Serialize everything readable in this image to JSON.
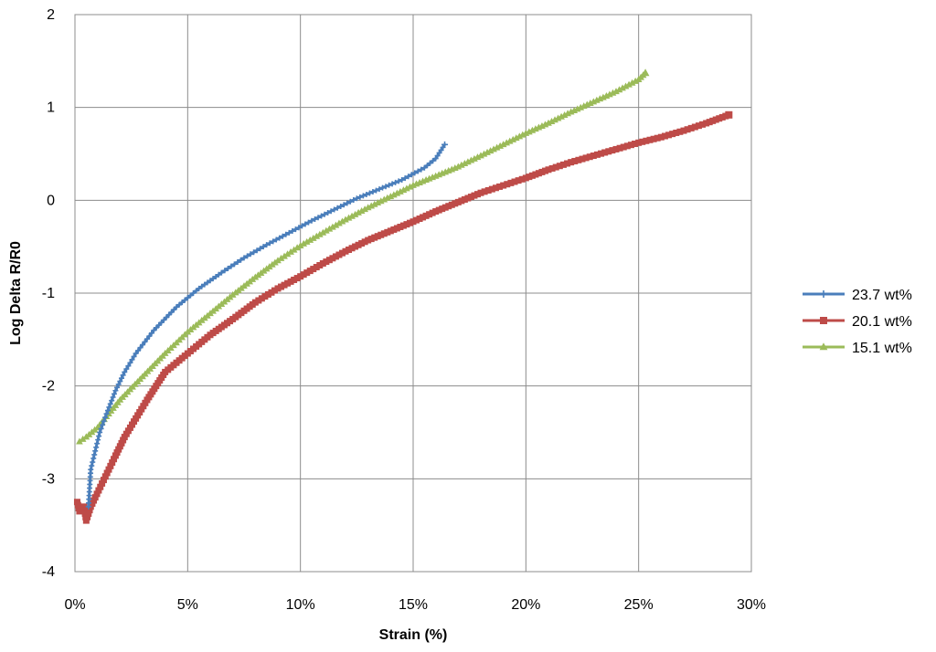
{
  "chart_data": {
    "type": "line",
    "xlabel": "Strain (%)",
    "ylabel": "Log Delta R/R0",
    "xlim": [
      0,
      30
    ],
    "ylim": [
      -4,
      2
    ],
    "x_ticks": [
      "0%",
      "5%",
      "10%",
      "15%",
      "20%",
      "25%",
      "30%"
    ],
    "y_ticks": [
      "-4",
      "-3",
      "-2",
      "-1",
      "0",
      "1",
      "2"
    ],
    "grid": true,
    "legend_position": "right",
    "series": [
      {
        "name": "23.7 wt%",
        "color": "#4a7ebb",
        "marker": "plus",
        "points": [
          [
            0.6,
            -3.3
          ],
          [
            0.7,
            -2.9
          ],
          [
            0.9,
            -2.7
          ],
          [
            1.1,
            -2.5
          ],
          [
            1.4,
            -2.3
          ],
          [
            1.8,
            -2.05
          ],
          [
            2.2,
            -1.85
          ],
          [
            2.7,
            -1.65
          ],
          [
            3.5,
            -1.4
          ],
          [
            4.5,
            -1.15
          ],
          [
            5.5,
            -0.95
          ],
          [
            6.5,
            -0.78
          ],
          [
            7.5,
            -0.62
          ],
          [
            8.5,
            -0.48
          ],
          [
            9.5,
            -0.35
          ],
          [
            10.5,
            -0.22
          ],
          [
            11.5,
            -0.1
          ],
          [
            12.5,
            0.02
          ],
          [
            13.5,
            0.12
          ],
          [
            14.5,
            0.22
          ],
          [
            15.5,
            0.35
          ],
          [
            16.0,
            0.45
          ],
          [
            16.4,
            0.6
          ]
        ]
      },
      {
        "name": "20.1 wt%",
        "color": "#be4b48",
        "marker": "square",
        "points": [
          [
            0.1,
            -3.25
          ],
          [
            0.2,
            -3.35
          ],
          [
            0.4,
            -3.3
          ],
          [
            0.5,
            -3.45
          ],
          [
            0.7,
            -3.3
          ],
          [
            0.9,
            -3.2
          ],
          [
            1.2,
            -3.05
          ],
          [
            1.5,
            -2.9
          ],
          [
            1.8,
            -2.75
          ],
          [
            2.2,
            -2.55
          ],
          [
            2.7,
            -2.35
          ],
          [
            3.2,
            -2.15
          ],
          [
            3.6,
            -2.0
          ],
          [
            4.0,
            -1.85
          ],
          [
            5.0,
            -1.65
          ],
          [
            6.0,
            -1.45
          ],
          [
            7.0,
            -1.28
          ],
          [
            8.0,
            -1.1
          ],
          [
            9.0,
            -0.95
          ],
          [
            10.0,
            -0.82
          ],
          [
            11.0,
            -0.68
          ],
          [
            12.0,
            -0.55
          ],
          [
            13.0,
            -0.43
          ],
          [
            14.0,
            -0.33
          ],
          [
            15.0,
            -0.23
          ],
          [
            16.0,
            -0.12
          ],
          [
            17.0,
            -0.02
          ],
          [
            18.0,
            0.08
          ],
          [
            19.0,
            0.16
          ],
          [
            20.0,
            0.24
          ],
          [
            21.0,
            0.33
          ],
          [
            22.0,
            0.41
          ],
          [
            23.0,
            0.48
          ],
          [
            24.0,
            0.55
          ],
          [
            25.0,
            0.62
          ],
          [
            26.0,
            0.68
          ],
          [
            27.0,
            0.75
          ],
          [
            28.0,
            0.83
          ],
          [
            29.0,
            0.92
          ]
        ]
      },
      {
        "name": "15.1 wt%",
        "color": "#9bbb59",
        "marker": "triangle",
        "points": [
          [
            0.2,
            -2.6
          ],
          [
            0.5,
            -2.55
          ],
          [
            1.0,
            -2.45
          ],
          [
            1.5,
            -2.3
          ],
          [
            2.0,
            -2.15
          ],
          [
            3.0,
            -1.9
          ],
          [
            4.0,
            -1.65
          ],
          [
            5.0,
            -1.42
          ],
          [
            6.0,
            -1.22
          ],
          [
            7.0,
            -1.02
          ],
          [
            8.0,
            -0.83
          ],
          [
            9.0,
            -0.65
          ],
          [
            10.0,
            -0.49
          ],
          [
            11.0,
            -0.35
          ],
          [
            12.0,
            -0.21
          ],
          [
            13.0,
            -0.08
          ],
          [
            14.0,
            0.04
          ],
          [
            15.0,
            0.16
          ],
          [
            16.0,
            0.26
          ],
          [
            17.0,
            0.36
          ],
          [
            18.0,
            0.48
          ],
          [
            19.0,
            0.6
          ],
          [
            20.0,
            0.72
          ],
          [
            21.0,
            0.83
          ],
          [
            22.0,
            0.95
          ],
          [
            23.0,
            1.06
          ],
          [
            24.0,
            1.17
          ],
          [
            25.0,
            1.3
          ],
          [
            25.3,
            1.37
          ]
        ]
      }
    ]
  }
}
